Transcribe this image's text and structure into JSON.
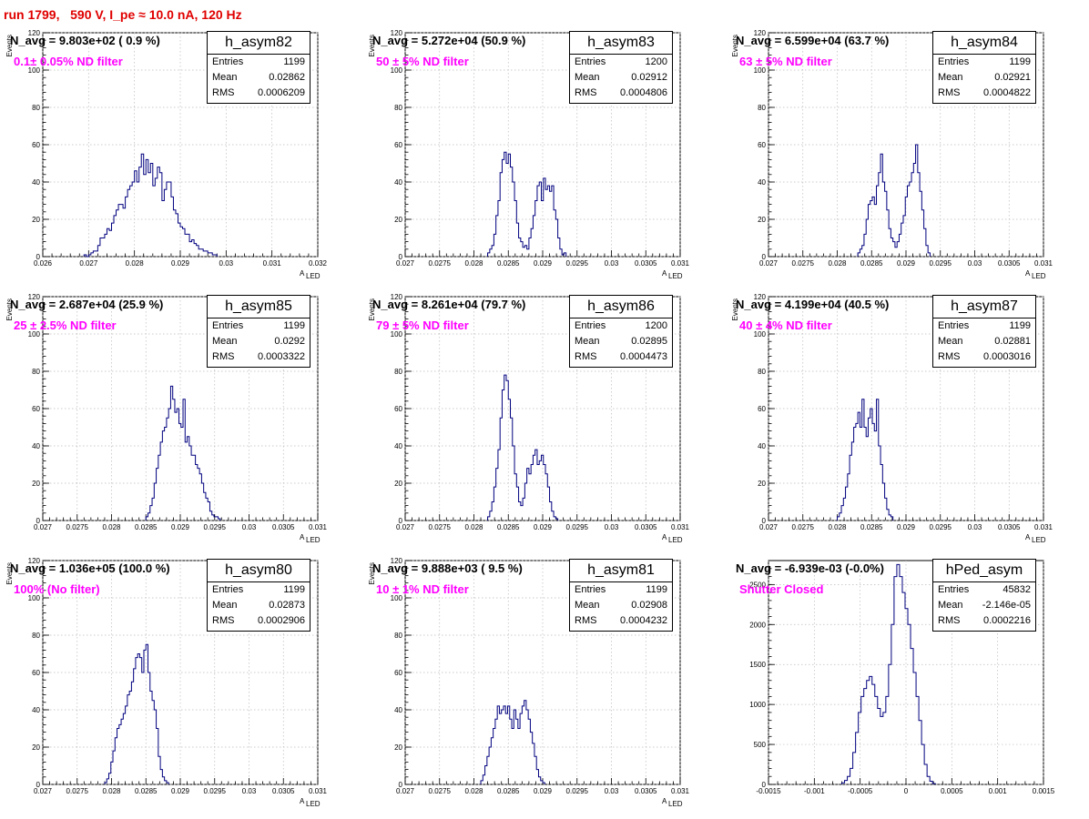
{
  "page_title": "run 1799,   590 V, I_pe ≈ 10.0 nA, 120 Hz",
  "chart_data": [
    {
      "type": "histogram",
      "stats": {
        "title": "h_asym82",
        "entries": "1199",
        "mean": "0.02862",
        "rms": "0.0006209"
      },
      "navg": "N_avg = 9.803e+02 ( 0.9 %)",
      "note": "0.1± 0.05% ND filter",
      "xlabel": "A",
      "xlabel_sub": "LED",
      "ylabel": "Events",
      "xlim": [
        0.026,
        0.032
      ],
      "ylim": [
        0,
        120
      ],
      "xticks": [
        0.026,
        0.027,
        0.028,
        0.029,
        0.03,
        0.031,
        0.032
      ],
      "xtick_labels": [
        "0.026",
        "0.027",
        "0.028",
        "0.029",
        "0.03",
        "0.031",
        "0.032"
      ],
      "yticks": [
        0,
        20,
        40,
        60,
        80,
        100,
        120
      ],
      "ytick_labels": [
        "0",
        "20",
        "40",
        "60",
        "80",
        "100",
        "120"
      ],
      "bin_start": 0.0269,
      "bin_width": 5e-05,
      "counts": [
        1,
        0,
        1,
        2,
        3,
        3,
        6,
        10,
        10,
        12,
        15,
        14,
        18,
        22,
        25,
        28,
        28,
        26,
        32,
        36,
        38,
        40,
        46,
        40,
        48,
        55,
        44,
        52,
        45,
        50,
        38,
        42,
        48,
        45,
        30,
        36,
        40,
        40,
        32,
        25,
        23,
        18,
        16,
        15,
        12,
        12,
        8,
        9,
        7,
        6,
        4,
        4,
        3,
        3,
        2,
        2,
        1,
        1
      ]
    },
    {
      "type": "histogram",
      "stats": {
        "title": "h_asym83",
        "entries": "1200",
        "mean": "0.02912",
        "rms": "0.0004806"
      },
      "navg": "N_avg = 5.272e+04 (50.9 %)",
      "note": "50 ± 5% ND filter",
      "xlabel": "A",
      "xlabel_sub": "LED",
      "ylabel": "Events",
      "xlim": [
        0.027,
        0.031
      ],
      "ylim": [
        0,
        120
      ],
      "xticks": [
        0.027,
        0.0275,
        0.028,
        0.0285,
        0.029,
        0.0295,
        0.03,
        0.0305,
        0.031
      ],
      "xtick_labels": [
        "0.027",
        "0.0275",
        "0.028",
        "0.0285",
        "0.029",
        "0.0295",
        "0.03",
        "0.0305",
        "0.031"
      ],
      "yticks": [
        0,
        20,
        40,
        60,
        80,
        100,
        120
      ],
      "ytick_labels": [
        "0",
        "20",
        "40",
        "60",
        "80",
        "100",
        "120"
      ],
      "bin_start": 0.0282,
      "bin_width": 3e-05,
      "counts": [
        2,
        4,
        6,
        12,
        22,
        30,
        45,
        52,
        56,
        50,
        55,
        48,
        40,
        30,
        18,
        10,
        8,
        5,
        6,
        4,
        10,
        15,
        22,
        30,
        38,
        40,
        30,
        42,
        36,
        38,
        35,
        38,
        25,
        20,
        10,
        4,
        1,
        2
      ]
    },
    {
      "type": "histogram",
      "stats": {
        "title": "h_asym84",
        "entries": "1199",
        "mean": "0.02921",
        "rms": "0.0004822"
      },
      "navg": "N_avg = 6.599e+04 (63.7 %)",
      "note": "63 ± 5% ND filter",
      "xlabel": "A",
      "xlabel_sub": "LED",
      "ylabel": "Events",
      "xlim": [
        0.027,
        0.031
      ],
      "ylim": [
        0,
        120
      ],
      "xticks": [
        0.027,
        0.0275,
        0.028,
        0.0285,
        0.029,
        0.0295,
        0.03,
        0.0305,
        0.031
      ],
      "xtick_labels": [
        "0.027",
        "0.0275",
        "0.028",
        "0.0285",
        "0.029",
        "0.0295",
        "0.03",
        "0.0305",
        "0.031"
      ],
      "yticks": [
        0,
        20,
        40,
        60,
        80,
        100,
        120
      ],
      "ytick_labels": [
        "0",
        "20",
        "40",
        "60",
        "80",
        "100",
        "120"
      ],
      "bin_start": 0.0283,
      "bin_width": 3e-05,
      "counts": [
        2,
        4,
        6,
        12,
        20,
        28,
        30,
        32,
        28,
        38,
        45,
        55,
        40,
        35,
        25,
        15,
        10,
        8,
        5,
        8,
        12,
        18,
        22,
        32,
        38,
        40,
        45,
        50,
        60,
        45,
        35,
        25,
        15,
        6,
        2
      ]
    },
    {
      "type": "histogram",
      "stats": {
        "title": "h_asym85",
        "entries": "1199",
        "mean": "0.0292",
        "rms": "0.0003322"
      },
      "navg": "N_avg = 2.687e+04 (25.9 %)",
      "note": "25 ± 2.5% ND filter",
      "xlabel": "A",
      "xlabel_sub": "LED",
      "ylabel": "Events",
      "xlim": [
        0.027,
        0.031
      ],
      "ylim": [
        0,
        120
      ],
      "xticks": [
        0.027,
        0.0275,
        0.028,
        0.0285,
        0.029,
        0.0295,
        0.03,
        0.0305,
        0.031
      ],
      "xtick_labels": [
        "0.027",
        "0.0275",
        "0.028",
        "0.0285",
        "0.029",
        "0.0295",
        "0.03",
        "0.0305",
        "0.031"
      ],
      "yticks": [
        0,
        20,
        40,
        60,
        80,
        100,
        120
      ],
      "ytick_labels": [
        "0",
        "20",
        "40",
        "60",
        "80",
        "100",
        "120"
      ],
      "bin_start": 0.0285,
      "bin_width": 3e-05,
      "counts": [
        2,
        4,
        8,
        12,
        20,
        28,
        35,
        42,
        48,
        50,
        55,
        60,
        72,
        65,
        58,
        60,
        52,
        50,
        65,
        42,
        45,
        40,
        35,
        35,
        30,
        28,
        25,
        20,
        15,
        12,
        10,
        5,
        3,
        2,
        2,
        1
      ]
    },
    {
      "type": "histogram",
      "stats": {
        "title": "h_asym86",
        "entries": "1200",
        "mean": "0.02895",
        "rms": "0.0004473"
      },
      "navg": "N_avg = 8.261e+04 (79.7 %)",
      "note": "79 ± 5% ND filter",
      "xlabel": "A",
      "xlabel_sub": "LED",
      "ylabel": "Events",
      "xlim": [
        0.027,
        0.031
      ],
      "ylim": [
        0,
        120
      ],
      "xticks": [
        0.027,
        0.0275,
        0.028,
        0.0285,
        0.029,
        0.0295,
        0.03,
        0.0305,
        0.031
      ],
      "xtick_labels": [
        "0.027",
        "0.0275",
        "0.028",
        "0.0285",
        "0.029",
        "0.0295",
        "0.03",
        "0.0305",
        "0.031"
      ],
      "yticks": [
        0,
        20,
        40,
        60,
        80,
        100,
        120
      ],
      "ytick_labels": [
        "0",
        "20",
        "40",
        "60",
        "80",
        "100",
        "120"
      ],
      "bin_start": 0.0282,
      "bin_width": 3e-05,
      "counts": [
        2,
        5,
        10,
        18,
        28,
        38,
        55,
        70,
        78,
        75,
        65,
        55,
        40,
        25,
        18,
        10,
        8,
        12,
        20,
        28,
        25,
        30,
        35,
        38,
        30,
        32,
        35,
        30,
        25,
        18,
        10,
        5,
        2,
        1
      ]
    },
    {
      "type": "histogram",
      "stats": {
        "title": "h_asym87",
        "entries": "1199",
        "mean": "0.02881",
        "rms": "0.0003016"
      },
      "navg": "N_avg = 4.199e+04 (40.5 %)",
      "note": "40 ± 4% ND filter",
      "xlabel": "A",
      "xlabel_sub": "LED",
      "ylabel": "Events",
      "xlim": [
        0.027,
        0.031
      ],
      "ylim": [
        0,
        120
      ],
      "xticks": [
        0.027,
        0.0275,
        0.028,
        0.0285,
        0.029,
        0.0295,
        0.03,
        0.0305,
        0.031
      ],
      "xtick_labels": [
        "0.027",
        "0.0275",
        "0.028",
        "0.0285",
        "0.029",
        "0.0295",
        "0.03",
        "0.0305",
        "0.031"
      ],
      "yticks": [
        0,
        20,
        40,
        60,
        80,
        100,
        120
      ],
      "ytick_labels": [
        "0",
        "20",
        "40",
        "60",
        "80",
        "100",
        "120"
      ],
      "bin_start": 0.028,
      "bin_width": 3e-05,
      "counts": [
        2,
        4,
        8,
        12,
        18,
        25,
        35,
        42,
        50,
        52,
        58,
        50,
        65,
        50,
        45,
        55,
        60,
        52,
        48,
        65,
        40,
        30,
        20,
        12,
        6,
        3,
        2
      ]
    },
    {
      "type": "histogram",
      "stats": {
        "title": "h_asym80",
        "entries": "1199",
        "mean": "0.02873",
        "rms": "0.0002906"
      },
      "navg": "N_avg = 1.036e+05 (100.0 %)",
      "note": "100% (No filter)",
      "xlabel": "A",
      "xlabel_sub": "LED",
      "ylabel": "Events",
      "xlim": [
        0.027,
        0.031
      ],
      "ylim": [
        0,
        120
      ],
      "xticks": [
        0.027,
        0.0275,
        0.028,
        0.0285,
        0.029,
        0.0295,
        0.03,
        0.0305,
        0.031
      ],
      "xtick_labels": [
        "0.027",
        "0.0275",
        "0.028",
        "0.0285",
        "0.029",
        "0.0295",
        "0.03",
        "0.0305",
        "0.031"
      ],
      "yticks": [
        0,
        20,
        40,
        60,
        80,
        100,
        120
      ],
      "ytick_labels": [
        "0",
        "20",
        "40",
        "60",
        "80",
        "100",
        "120"
      ],
      "bin_start": 0.0279,
      "bin_width": 3e-05,
      "counts": [
        1,
        3,
        6,
        12,
        18,
        25,
        30,
        32,
        35,
        38,
        42,
        48,
        50,
        55,
        62,
        68,
        70,
        68,
        60,
        72,
        75,
        60,
        50,
        45,
        40,
        30,
        15,
        8,
        4,
        2,
        1
      ]
    },
    {
      "type": "histogram",
      "stats": {
        "title": "h_asym81",
        "entries": "1199",
        "mean": "0.02908",
        "rms": "0.0004232"
      },
      "navg": "N_avg = 9.888e+03 ( 9.5 %)",
      "note": "10 ± 1% ND filter",
      "xlabel": "A",
      "xlabel_sub": "LED",
      "ylabel": "Events",
      "xlim": [
        0.027,
        0.031
      ],
      "ylim": [
        0,
        120
      ],
      "xticks": [
        0.027,
        0.0275,
        0.028,
        0.0285,
        0.029,
        0.0295,
        0.03,
        0.0305,
        0.031
      ],
      "xtick_labels": [
        "0.027",
        "0.0275",
        "0.028",
        "0.0285",
        "0.029",
        "0.0295",
        "0.03",
        "0.0305",
        "0.031"
      ],
      "yticks": [
        0,
        20,
        40,
        60,
        80,
        100,
        120
      ],
      "ytick_labels": [
        "0",
        "20",
        "40",
        "60",
        "80",
        "100",
        "120"
      ],
      "bin_start": 0.0281,
      "bin_width": 3e-05,
      "counts": [
        2,
        5,
        10,
        15,
        20,
        25,
        30,
        35,
        42,
        38,
        40,
        42,
        38,
        42,
        35,
        30,
        40,
        35,
        30,
        38,
        42,
        45,
        40,
        35,
        28,
        22,
        15,
        8,
        4,
        2,
        1
      ]
    },
    {
      "type": "histogram",
      "stats": {
        "title": "hPed_asym",
        "entries": "45832",
        "mean": "-2.146e-05",
        "rms": "0.0002216"
      },
      "navg": "N_avg = -6.939e-03 (-0.0%)",
      "note": "Shutter Closed",
      "xlabel": "",
      "xlabel_sub": "",
      "ylabel": "",
      "xlim": [
        -0.0015,
        0.0015
      ],
      "ylim": [
        0,
        2800
      ],
      "xticks": [
        -0.0015,
        -0.001,
        -0.0005,
        0,
        0.0005,
        0.001,
        0.0015
      ],
      "xtick_labels": [
        "-0.0015",
        "-0.001",
        "-0.0005",
        "0",
        "0.0005",
        "0.001",
        "0.0015"
      ],
      "yticks": [
        0,
        500,
        1000,
        1500,
        2000,
        2500
      ],
      "ytick_labels": [
        "0",
        "500",
        "1000",
        "1500",
        "2000",
        "2500"
      ],
      "bin_start": -0.0007,
      "bin_width": 3e-05,
      "counts": [
        20,
        50,
        100,
        200,
        400,
        650,
        900,
        1100,
        1200,
        1300,
        1350,
        1250,
        1100,
        950,
        850,
        900,
        1100,
        1500,
        2000,
        2600,
        2750,
        2600,
        2400,
        2200,
        2000,
        1700,
        1400,
        1100,
        800,
        500,
        250,
        100,
        40,
        10
      ]
    }
  ]
}
